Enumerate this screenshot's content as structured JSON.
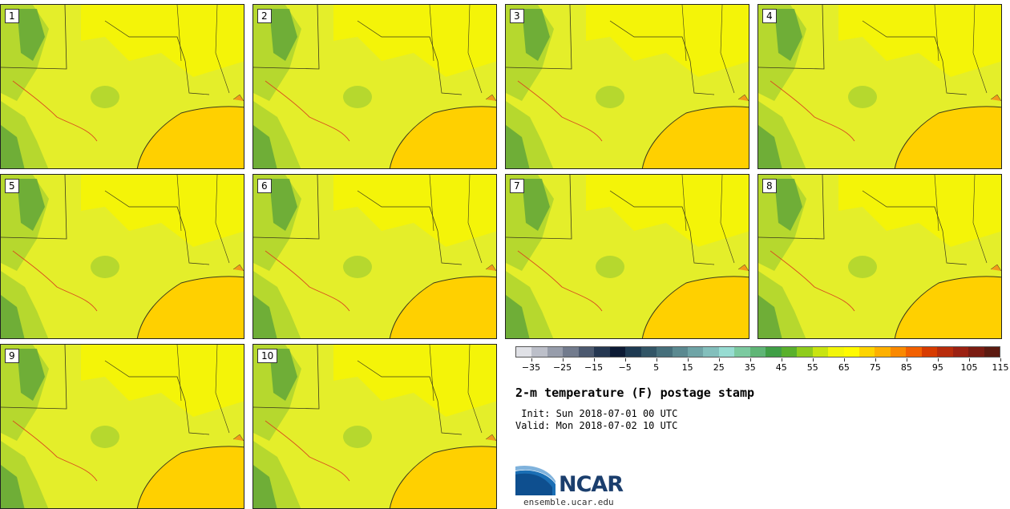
{
  "members": [
    "1",
    "2",
    "3",
    "4",
    "5",
    "6",
    "7",
    "8",
    "9",
    "10"
  ],
  "colorbar": {
    "colors": [
      "#e0e1e6",
      "#bcbfc9",
      "#979dab",
      "#727b8d",
      "#4c596f",
      "#253751",
      "#0c1a34",
      "#1e3a52",
      "#325566",
      "#466f7b",
      "#5b8990",
      "#6fa4a6",
      "#83bfbc",
      "#97dcd2",
      "#7ccaa0",
      "#5fb576",
      "#409f46",
      "#59b02c",
      "#8fcc1c",
      "#c8e410",
      "#f2f50a",
      "#fffa00",
      "#fdd400",
      "#fdb000",
      "#fa8900",
      "#f26000",
      "#d73b00",
      "#b82c0b",
      "#9b2112",
      "#7b1c12",
      "#5b1a10"
    ],
    "ticks": [
      "−35",
      "−25",
      "−15",
      "−5",
      "5",
      "15",
      "25",
      "35",
      "45",
      "55",
      "65",
      "75",
      "85",
      "95",
      "105",
      "115"
    ]
  },
  "title": "2-m temperature (F) postage stamp",
  "init": " Init: Sun 2018-07-01 00 UTC",
  "valid": "Valid: Mon 2018-07-02 10 UTC",
  "logo_text": "NCAR",
  "website": "ensemble.ucar.edu",
  "colors": {
    "land": "#e4ee2a",
    "hot": "#f7f500",
    "green": "#b6d82e",
    "dark_green": "#5ea43a",
    "ocean": "#ffd000",
    "border": "#3a3a1a"
  },
  "icons": {
    "logo": "ncar-logo-icon"
  }
}
